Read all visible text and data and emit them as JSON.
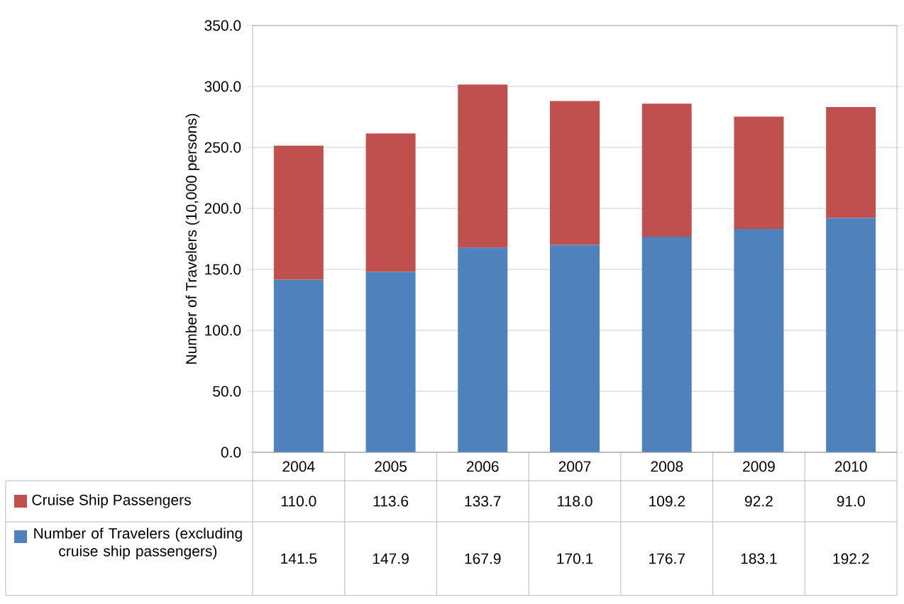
{
  "chart_data": {
    "type": "bar",
    "stacked": true,
    "ylabel": "Number of Travelers (10,000 persons)",
    "categories": [
      "2004",
      "2005",
      "2006",
      "2007",
      "2008",
      "2009",
      "2010"
    ],
    "series": [
      {
        "name": "Number of Travelers (excluding cruise ship passengers)",
        "color": "#4f81bd",
        "values": [
          141.5,
          147.9,
          167.9,
          170.1,
          176.7,
          183.1,
          192.2
        ],
        "value_labels": [
          "141.5",
          "147.9",
          "167.9",
          "170.1",
          "176.7",
          "183.1",
          "192.2"
        ]
      },
      {
        "name": "Cruise Ship Passengers",
        "color": "#c0504d",
        "values": [
          110.0,
          113.6,
          133.7,
          118.0,
          109.2,
          92.2,
          91.0
        ],
        "value_labels": [
          "110.0",
          "113.6",
          "133.7",
          "118.0",
          "109.2",
          "92.2",
          "91.0"
        ]
      }
    ],
    "ylim": [
      0,
      350
    ],
    "yticks": [
      {
        "value": 0,
        "label": "0.0"
      },
      {
        "value": 50,
        "label": "50.0"
      },
      {
        "value": 100,
        "label": "100.0"
      },
      {
        "value": 150,
        "label": "150.0"
      },
      {
        "value": 200,
        "label": "200.0"
      },
      {
        "value": 250,
        "label": "250.0"
      },
      {
        "value": 300,
        "label": "300.0"
      },
      {
        "value": 350,
        "label": "350.0"
      }
    ],
    "grid": "y",
    "legend": "bottom"
  }
}
